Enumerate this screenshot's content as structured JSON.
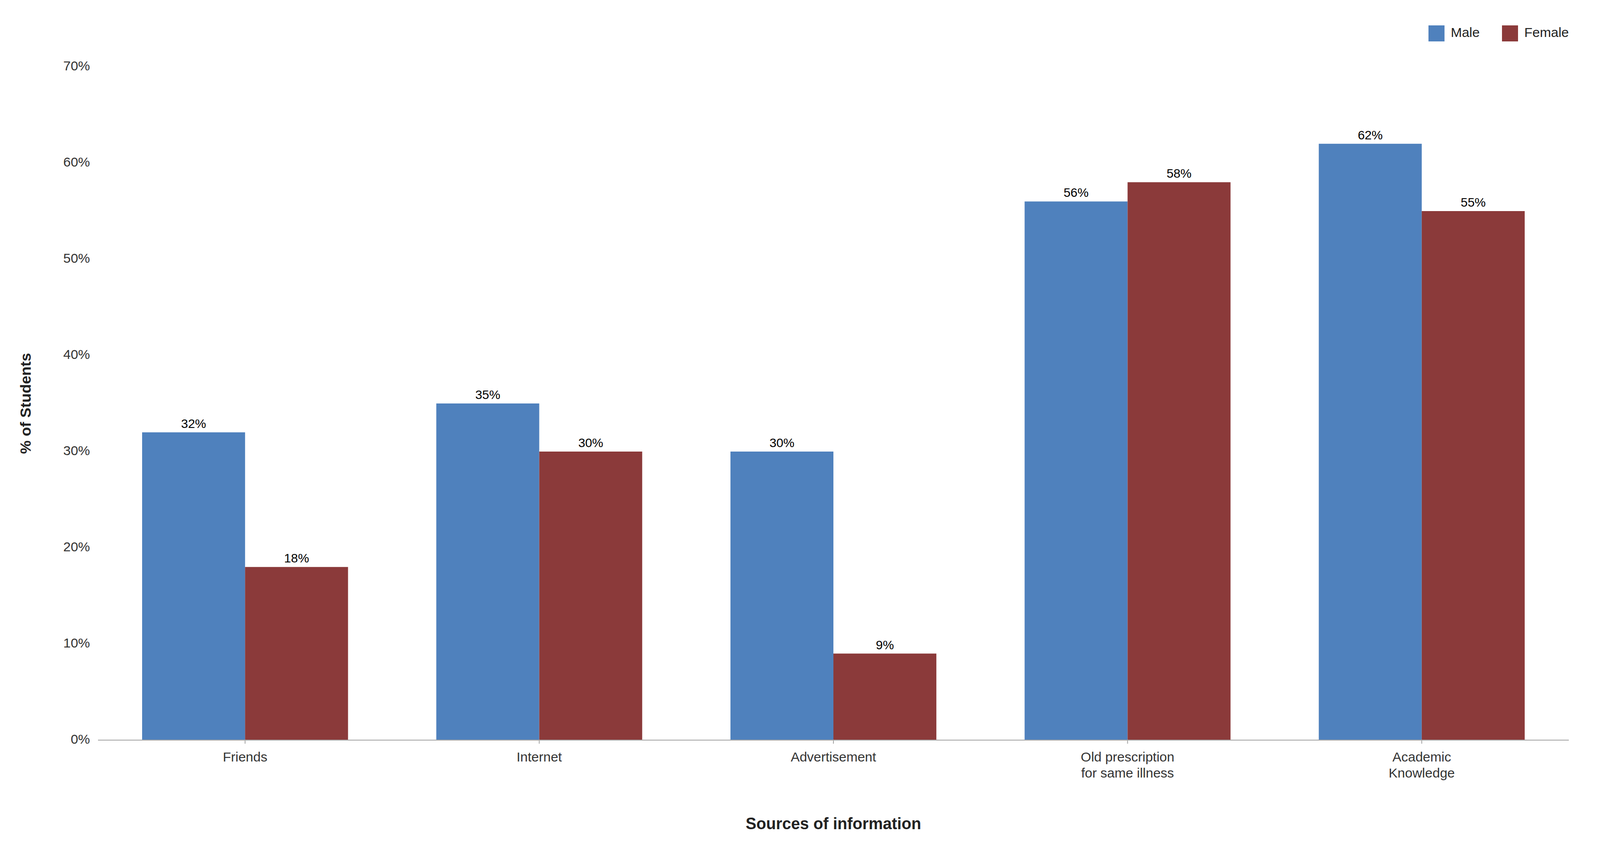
{
  "chart_data": {
    "type": "bar",
    "categories": [
      "Friends",
      "Internet",
      "Advertisement",
      "Old prescription\nfor same illness",
      "Academic\nKnowledge"
    ],
    "series": [
      {
        "name": "Male",
        "color": "#4F81BD",
        "values": [
          32,
          35,
          30,
          56,
          62
        ],
        "value_labels": [
          "32%",
          "35%",
          "30%",
          "56%",
          "62%"
        ]
      },
      {
        "name": "Female",
        "color": "#8B3A3A",
        "values": [
          18,
          30,
          9,
          58,
          55
        ],
        "value_labels": [
          "18%",
          "30%",
          "9%",
          "58%",
          "55%"
        ]
      }
    ],
    "xlabel": "Sources of information",
    "ylabel": "% of Students",
    "ylim": [
      0,
      70
    ],
    "yticks": [
      {
        "value": 0,
        "label": "0%"
      },
      {
        "value": 10,
        "label": "10%"
      },
      {
        "value": 20,
        "label": "20%"
      },
      {
        "value": 30,
        "label": "30%"
      },
      {
        "value": 40,
        "label": "40%"
      },
      {
        "value": 50,
        "label": "50%"
      },
      {
        "value": 60,
        "label": "60%"
      },
      {
        "value": 70,
        "label": "70%"
      }
    ],
    "grid": false,
    "legend": "upper right",
    "data_labels": true
  }
}
